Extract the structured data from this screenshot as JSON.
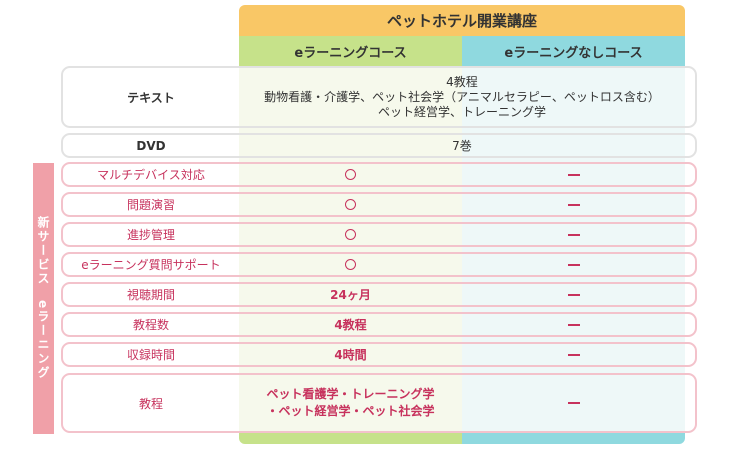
{
  "header": {
    "title": "ペットホテル開業講座",
    "col_elearning": "eラーニングコース",
    "col_no_elearning": "eラーニングなしコース"
  },
  "side_label": "新サービス　eラーニング",
  "rows": {
    "text": {
      "label": "テキスト",
      "line1": "4教程",
      "line2": "動物看護・介護学、ペット社会学（アニマルセラピー、ペットロス含む）",
      "line3": "ペット経営学、トレーニング学"
    },
    "dvd": {
      "label": "DVD",
      "value": "7巻"
    },
    "multidevice": {
      "label": "マルチデバイス対応"
    },
    "practice": {
      "label": "問題演習"
    },
    "progress": {
      "label": "進捗管理"
    },
    "support": {
      "label": "eラーニング質問サポート"
    },
    "period": {
      "label": "視聴期間",
      "elearning": "24ヶ月"
    },
    "courses": {
      "label": "教程数",
      "elearning": "4教程"
    },
    "hours": {
      "label": "収録時間",
      "elearning": "4時間"
    },
    "curriculum": {
      "label": "教程",
      "elearning_line1": "ペット看護学・トレーニング学",
      "elearning_line2": "・ペット経営学・ペット社会学"
    }
  },
  "colors": {
    "accent_pink": "#c7325d",
    "header_orange": "#f9c766",
    "header_green": "#c6e28a",
    "header_blue": "#8fd9df"
  }
}
